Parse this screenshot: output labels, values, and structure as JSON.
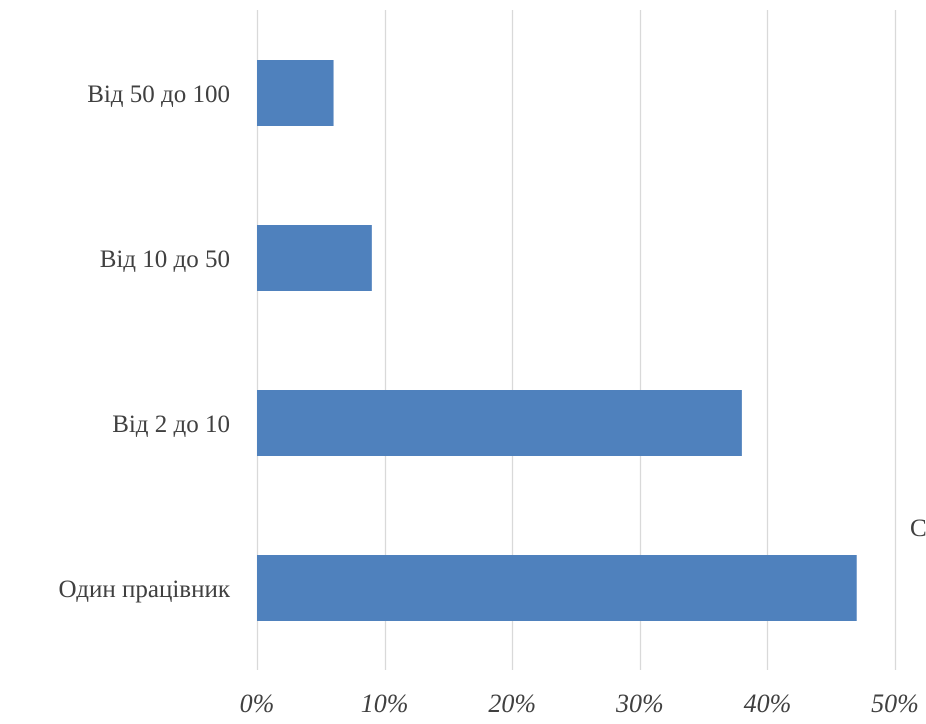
{
  "chart_data": {
    "type": "bar",
    "orientation": "horizontal",
    "categories": [
      "Від 50 до 100",
      "Від 10 до 50",
      "Від 2 до 10",
      "Один працівник"
    ],
    "values": [
      6,
      9,
      38,
      47
    ],
    "xlim": [
      0,
      50
    ],
    "xticks": [
      0,
      10,
      20,
      30,
      40,
      50
    ],
    "tick_labels": [
      "0%",
      "10%",
      "20%",
      "30%",
      "40%",
      "50%"
    ],
    "grid": "vertical",
    "legend": "none",
    "bar_color": "#4F81BD",
    "grid_color": "#D9D9D9",
    "edge_text": "C"
  }
}
